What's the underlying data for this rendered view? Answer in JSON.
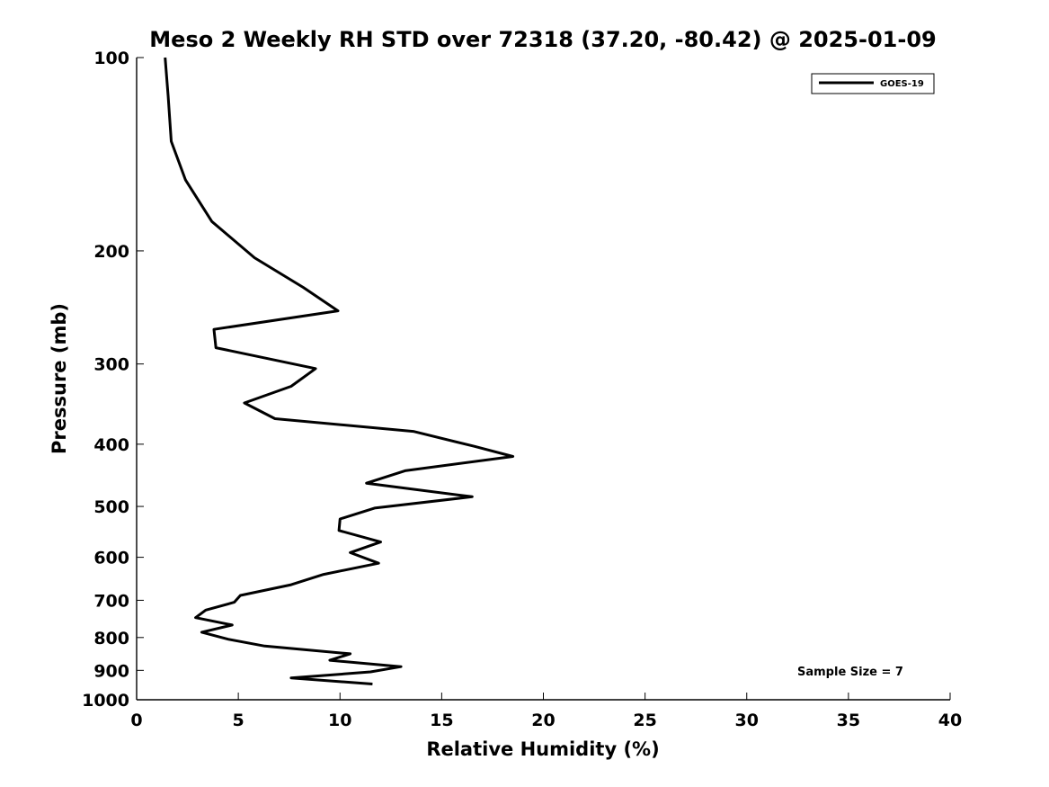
{
  "chart_data": {
    "type": "line",
    "title": "Meso 2 Weekly RH STD over 72318 (37.20, -80.42) @ 2025-01-09",
    "xlabel": "Relative Humidity (%)",
    "ylabel": "Pressure (mb)",
    "xlim": [
      0,
      40
    ],
    "ylim": [
      100,
      1000
    ],
    "yscale": "log",
    "y_inverted": true,
    "grid": false,
    "legend_position": "top-right",
    "x_ticks": [
      "0",
      "5",
      "10",
      "15",
      "20",
      "25",
      "30",
      "35",
      "40"
    ],
    "y_ticks": [
      "100",
      "200",
      "300",
      "400",
      "500",
      "600",
      "700",
      "800",
      "900",
      "1000"
    ],
    "series": [
      {
        "name": "GOES-19",
        "color": "#000000",
        "points": [
          [
            1.4,
            100
          ],
          [
            1.55,
            115
          ],
          [
            1.7,
            135
          ],
          [
            2.4,
            155
          ],
          [
            3.7,
            180
          ],
          [
            5.8,
            205
          ],
          [
            8.2,
            228
          ],
          [
            9.9,
            248
          ],
          [
            3.8,
            265
          ],
          [
            3.9,
            283
          ],
          [
            8.8,
            305
          ],
          [
            7.6,
            325
          ],
          [
            5.3,
            345
          ],
          [
            6.8,
            365
          ],
          [
            13.6,
            382
          ],
          [
            16.6,
            403
          ],
          [
            18.5,
            418
          ],
          [
            13.2,
            440
          ],
          [
            11.3,
            460
          ],
          [
            16.5,
            483
          ],
          [
            11.7,
            503
          ],
          [
            10.0,
            523
          ],
          [
            9.95,
            545
          ],
          [
            12.0,
            568
          ],
          [
            10.5,
            590
          ],
          [
            11.9,
            613
          ],
          [
            9.2,
            638
          ],
          [
            7.6,
            662
          ],
          [
            5.1,
            688
          ],
          [
            4.8,
            705
          ],
          [
            3.4,
            725
          ],
          [
            2.9,
            745
          ],
          [
            4.7,
            765
          ],
          [
            3.2,
            785
          ],
          [
            4.5,
            805
          ],
          [
            6.3,
            825
          ],
          [
            10.5,
            848
          ],
          [
            9.5,
            868
          ],
          [
            13.0,
            888
          ],
          [
            11.5,
            905
          ],
          [
            7.6,
            925
          ],
          [
            11.6,
            945
          ]
        ]
      }
    ],
    "annotation": "Sample Size = 7"
  }
}
